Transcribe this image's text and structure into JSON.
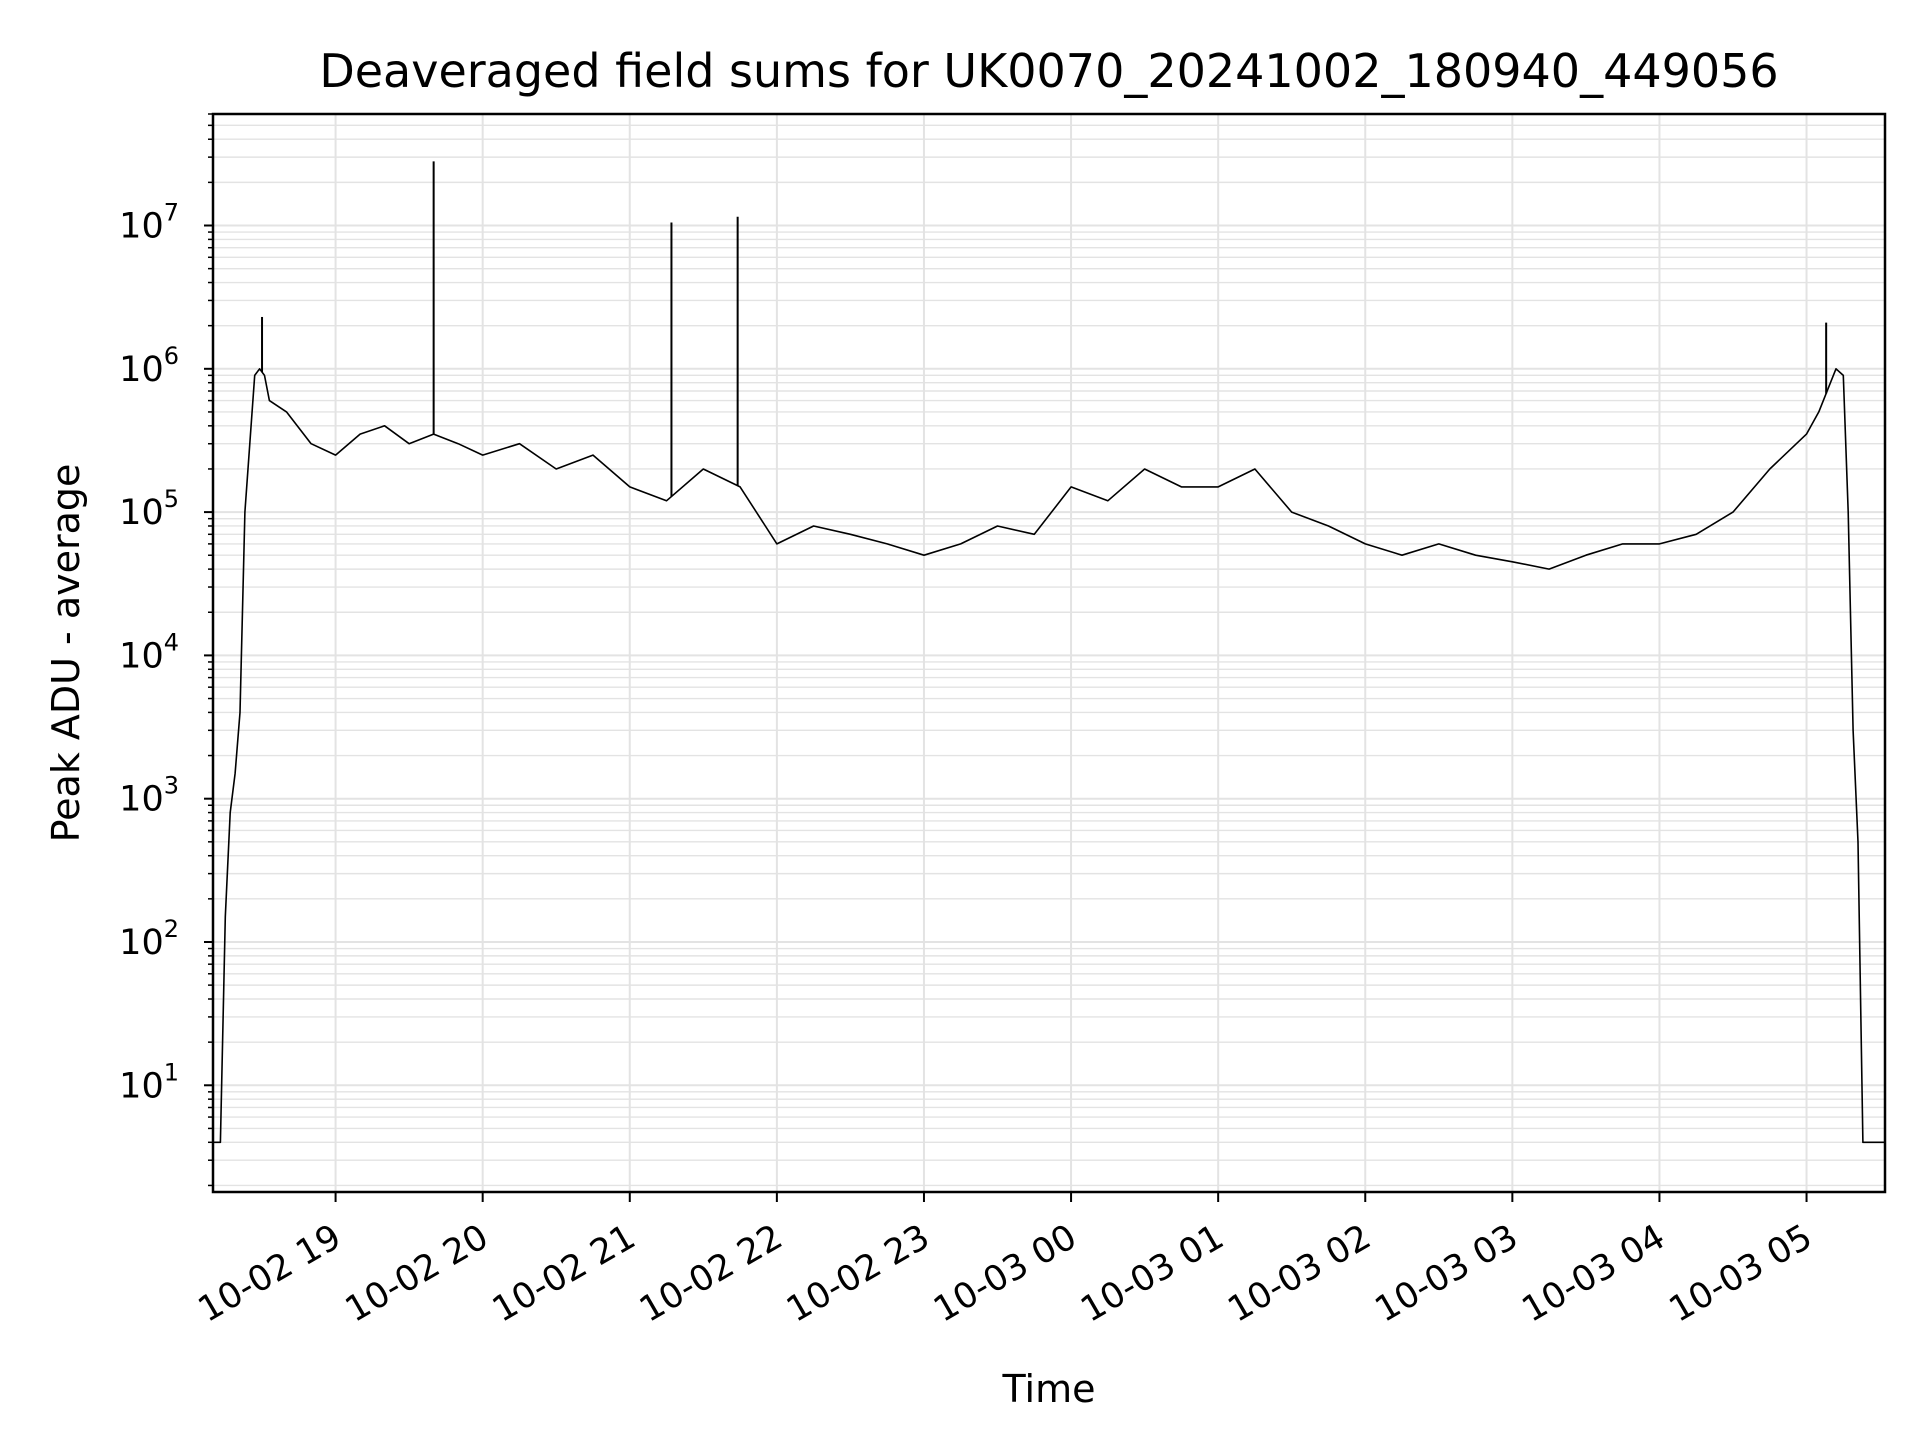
{
  "chart_data": {
    "type": "line",
    "title": "Deaveraged field sums for UK0070_20241002_180940_449056",
    "xlabel": "Time",
    "ylabel": "Peak ADU - average",
    "y_scale": "log",
    "ylim": [
      1.8,
      60000000
    ],
    "xlim": [
      "2024-10-02 18:10",
      "2024-10-03 05:32"
    ],
    "grid": true,
    "line_color": "#000000",
    "grid_color": "#e3e3e3",
    "x_ticks": [
      "10-02 19",
      "10-02 20",
      "10-02 21",
      "10-02 22",
      "10-02 23",
      "10-03 00",
      "10-03 01",
      "10-03 02",
      "10-03 03",
      "10-03 04",
      "10-03 05"
    ],
    "y_ticks": [
      {
        "value": 10,
        "base": "10",
        "exp": "1"
      },
      {
        "value": 100,
        "base": "10",
        "exp": "2"
      },
      {
        "value": 1000,
        "base": "10",
        "exp": "3"
      },
      {
        "value": 10000,
        "base": "10",
        "exp": "4"
      },
      {
        "value": 100000,
        "base": "10",
        "exp": "5"
      },
      {
        "value": 1000000,
        "base": "10",
        "exp": "6"
      },
      {
        "value": 10000000,
        "base": "10",
        "exp": "7"
      }
    ],
    "series": [
      {
        "x": [
          "2024-10-02 18:10",
          "2024-10-02 18:13",
          "2024-10-02 18:15",
          "2024-10-02 18:17",
          "2024-10-02 18:19",
          "2024-10-02 18:21",
          "2024-10-02 18:23",
          "2024-10-02 18:25",
          "2024-10-02 18:27",
          "2024-10-02 18:29",
          "2024-10-02 18:31",
          "2024-10-02 18:33",
          "2024-10-02 18:40",
          "2024-10-02 18:50",
          "2024-10-02 19:00",
          "2024-10-02 19:10",
          "2024-10-02 19:20",
          "2024-10-02 19:30",
          "2024-10-02 19:40",
          "2024-10-02 19:50",
          "2024-10-02 20:00",
          "2024-10-02 20:15",
          "2024-10-02 20:30",
          "2024-10-02 20:45",
          "2024-10-02 21:00",
          "2024-10-02 21:15",
          "2024-10-02 21:30",
          "2024-10-02 21:45",
          "2024-10-02 22:00",
          "2024-10-02 22:15",
          "2024-10-02 22:30",
          "2024-10-02 22:45",
          "2024-10-02 23:00",
          "2024-10-02 23:15",
          "2024-10-02 23:30",
          "2024-10-02 23:45",
          "2024-10-03 00:00",
          "2024-10-03 00:15",
          "2024-10-03 00:30",
          "2024-10-03 00:45",
          "2024-10-03 01:00",
          "2024-10-03 01:15",
          "2024-10-03 01:30",
          "2024-10-03 01:45",
          "2024-10-03 02:00",
          "2024-10-03 02:15",
          "2024-10-03 02:30",
          "2024-10-03 02:45",
          "2024-10-03 03:00",
          "2024-10-03 03:15",
          "2024-10-03 03:30",
          "2024-10-03 03:45",
          "2024-10-03 04:00",
          "2024-10-03 04:15",
          "2024-10-03 04:30",
          "2024-10-03 04:45",
          "2024-10-03 05:00",
          "2024-10-03 05:05",
          "2024-10-03 05:12",
          "2024-10-03 05:15",
          "2024-10-03 05:17",
          "2024-10-03 05:19",
          "2024-10-03 05:21",
          "2024-10-03 05:23",
          "2024-10-03 05:25",
          "2024-10-03 05:27",
          "2024-10-03 05:32"
        ],
        "y": [
          4,
          4,
          150,
          800,
          1500,
          4000,
          100000,
          300000,
          900000,
          1000000,
          900000,
          600000,
          500000,
          300000,
          250000,
          350000,
          400000,
          300000,
          350000,
          300000,
          250000,
          300000,
          200000,
          250000,
          150000,
          120000,
          200000,
          150000,
          60000,
          80000,
          70000,
          60000,
          50000,
          60000,
          80000,
          70000,
          150000,
          120000,
          200000,
          150000,
          150000,
          200000,
          100000,
          80000,
          60000,
          50000,
          60000,
          50000,
          45000,
          40000,
          50000,
          60000,
          60000,
          70000,
          100000,
          200000,
          350000,
          500000,
          1000000,
          900000,
          100000,
          3000,
          500,
          4,
          4,
          4,
          4
        ]
      }
    ],
    "spikes": [
      {
        "x": "2024-10-02 19:40",
        "y": 28000000
      },
      {
        "x": "2024-10-02 21:17",
        "y": 10500000
      },
      {
        "x": "2024-10-02 21:44",
        "y": 11500000
      },
      {
        "x": "2024-10-02 18:30",
        "y": 2300000
      },
      {
        "x": "2024-10-03 05:08",
        "y": 2100000
      }
    ]
  }
}
